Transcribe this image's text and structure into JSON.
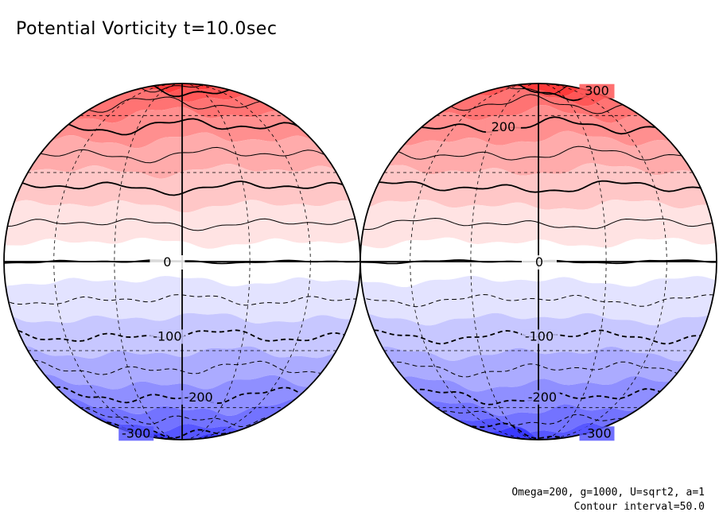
{
  "chart_data": {
    "type": "contour",
    "title": "Potential Vorticity t=10.0sec",
    "field": "potential vorticity",
    "projection": "orthographic, two hemispheric views",
    "contour_interval": 50.0,
    "value_range": [
      -350,
      350
    ],
    "colormap": {
      "negative": "#3b3bff",
      "zero": "#ffffff",
      "positive": "#ff3b3b"
    },
    "views": [
      {
        "name": "left-globe",
        "contour_labels": [
          "0",
          "-100",
          "-200",
          "-300"
        ]
      },
      {
        "name": "right-globe",
        "contour_labels": [
          "300",
          "200",
          "0",
          "-100",
          "-200",
          "-300"
        ]
      }
    ],
    "parameters": "Omega=200, g=1000, U=sqrt2, a=1",
    "contour_interval_label": "Contour interval=50.0"
  }
}
